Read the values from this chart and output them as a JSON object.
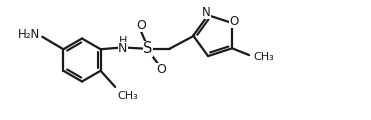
{
  "bg_color": "#ffffff",
  "line_color": "#1a1a1a",
  "line_width": 1.6,
  "font_size": 8.5,
  "figsize": [
    3.71,
    1.2
  ],
  "dpi": 100,
  "xlim": [
    0,
    3.71
  ],
  "ylim": [
    0,
    1.2
  ]
}
